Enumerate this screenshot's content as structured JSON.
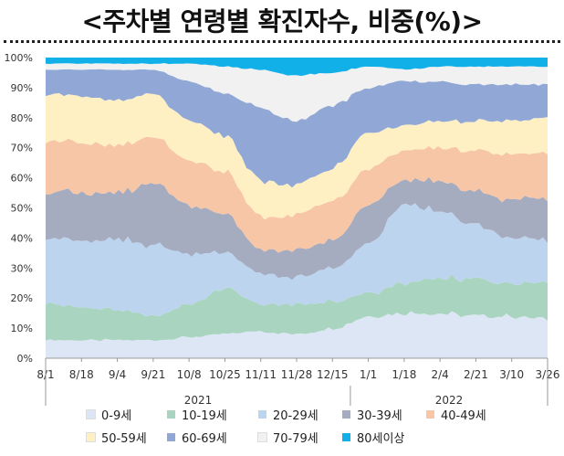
{
  "title": "<주차별 연령별 확진자수, 비중(%)>",
  "chart_data": {
    "type": "area",
    "stacked": true,
    "normalized_percent": true,
    "title": "<주차별 연령별 확진자수, 비중(%)>",
    "xlabel": "",
    "ylabel": "",
    "ylim": [
      0,
      100
    ],
    "y_ticks": [
      "0%",
      "10%",
      "20%",
      "30%",
      "40%",
      "50%",
      "60%",
      "70%",
      "80%",
      "90%",
      "100%"
    ],
    "x_tick_labels": [
      "8/1",
      "8/18",
      "9/4",
      "9/21",
      "10/8",
      "10/25",
      "11/11",
      "11/28",
      "12/15",
      "1/1",
      "1/18",
      "2/4",
      "2/21",
      "3/10",
      "3/26"
    ],
    "year_labels": [
      "2021",
      "2022"
    ],
    "legend_position": "bottom",
    "grid": false,
    "x": [
      "8/1",
      "8/18",
      "9/4",
      "9/21",
      "10/8",
      "10/25",
      "11/11",
      "11/28",
      "12/15",
      "1/1",
      "1/18",
      "2/4",
      "2/21",
      "3/10",
      "3/26"
    ],
    "series": [
      {
        "name": "0-9세",
        "color": "#dce6f4",
        "values": [
          6,
          6,
          6,
          6,
          7,
          8,
          9,
          8,
          10,
          14,
          15,
          15,
          14,
          14,
          13
        ]
      },
      {
        "name": "10-19세",
        "color": "#a9d4bf",
        "values": [
          12,
          11,
          10,
          8,
          11,
          15,
          9,
          10,
          9,
          8,
          10,
          12,
          12,
          11,
          12
        ]
      },
      {
        "name": "20-29세",
        "color": "#bcd4ee",
        "values": [
          22,
          22,
          23,
          24,
          17,
          12,
          10,
          9,
          11,
          16,
          26,
          22,
          18,
          15,
          14
        ]
      },
      {
        "name": "30-39세",
        "color": "#a5acc0",
        "values": [
          15,
          16,
          16,
          21,
          16,
          13,
          8,
          9,
          9,
          13,
          8,
          10,
          11,
          13,
          14
        ]
      },
      {
        "name": "40-49세",
        "color": "#f6c6a6",
        "values": [
          17,
          17,
          16,
          15,
          15,
          14,
          11,
          12,
          13,
          12,
          10,
          11,
          14,
          15,
          15
        ]
      },
      {
        "name": "50-59세",
        "color": "#fff0c4",
        "values": [
          16,
          15,
          15,
          14,
          13,
          12,
          12,
          10,
          11,
          12,
          8,
          9,
          10,
          11,
          12
        ]
      },
      {
        "name": "60-69세",
        "color": "#91a8d6",
        "values": [
          8,
          9,
          10,
          8,
          13,
          14,
          24,
          21,
          21,
          15,
          15,
          13,
          12,
          12,
          11
        ]
      },
      {
        "name": "70-79세",
        "color": "#f1f1f1",
        "values": [
          2,
          2,
          2,
          2,
          6,
          9,
          13,
          15,
          11,
          7,
          4,
          5,
          6,
          6,
          6
        ]
      },
      {
        "name": "80세이상",
        "color": "#12b0e8",
        "values": [
          2,
          2,
          2,
          2,
          2,
          3,
          4,
          6,
          5,
          3,
          4,
          3,
          3,
          3,
          3
        ]
      }
    ]
  }
}
